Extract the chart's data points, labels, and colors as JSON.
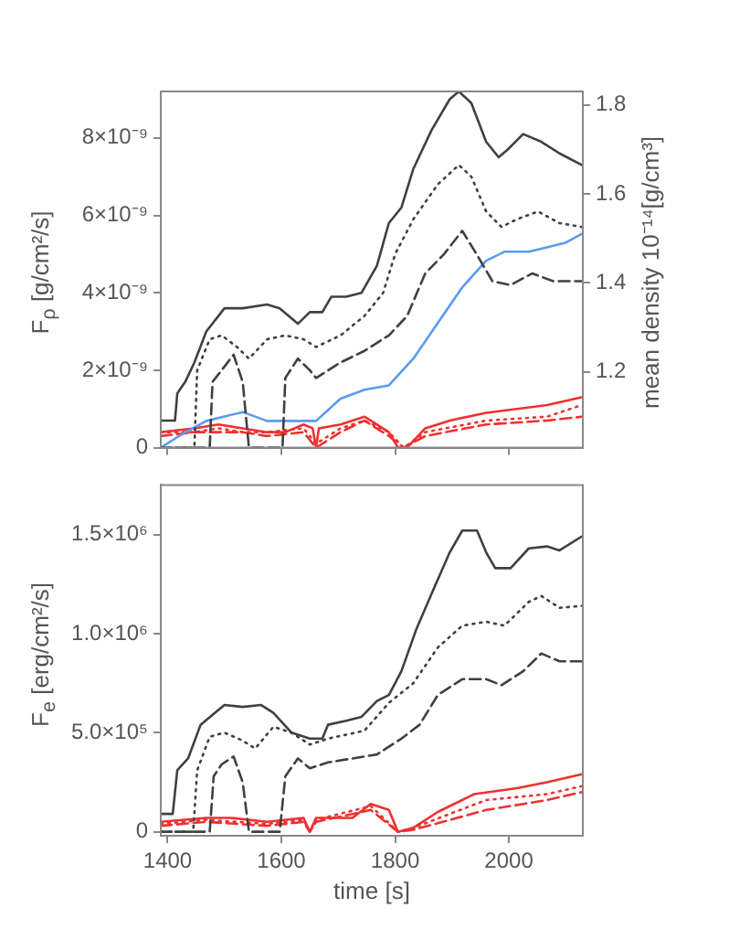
{
  "chart_data": [
    {
      "type": "line",
      "ylabel": "F$_{ρ}$ [g/cm²/s]",
      "y2label": "mean density 10⁻¹⁴[g/cm³]",
      "xlim": [
        1388,
        2130
      ],
      "xticks": [
        1400,
        1600,
        1800,
        2000
      ],
      "ylim": [
        0,
        9.2e-09
      ],
      "yticks": [
        0,
        {
          "value": 2e-09,
          "label": "2×10⁻⁹"
        },
        {
          "value": 4e-09,
          "label": "4×10⁻⁹"
        },
        {
          "value": 6e-09,
          "label": "6×10⁻⁹"
        },
        {
          "value": 8e-09,
          "label": "8×10⁻⁹"
        }
      ],
      "y2lim": [
        1.03,
        1.83
      ],
      "y2ticks": [
        {
          "value": 1.2,
          "label": "1.2"
        },
        {
          "value": 1.4,
          "label": "1.4"
        },
        {
          "value": 1.6,
          "label": "1.6"
        },
        {
          "value": 1.8,
          "label": "1.8"
        }
      ],
      "tick_labels": "y",
      "series": [
        {
          "color": "#404040",
          "line_style": "solid",
          "x": [
            1388,
            1413,
            1417,
            1431,
            1447,
            1468,
            1500,
            1532,
            1575,
            1597,
            1629,
            1650,
            1672,
            1688,
            1714,
            1741,
            1768,
            1789,
            1811,
            1832,
            1864,
            1896,
            1912,
            1934,
            1960,
            1982,
            1998,
            2025,
            2057,
            2089,
            2128
          ],
          "values": [
            7e-10,
            7e-10,
            1.4e-09,
            1.7e-09,
            2.2e-09,
            3e-09,
            3.6e-09,
            3.6e-09,
            3.7e-09,
            3.6e-09,
            3.2e-09,
            3.5e-09,
            3.5e-09,
            3.9e-09,
            3.9e-09,
            4e-09,
            4.7e-09,
            5.8e-09,
            6.2e-09,
            7.2e-09,
            8.2e-09,
            9e-09,
            9.2e-09,
            8.9e-09,
            7.9e-09,
            7.5e-09,
            7.7e-09,
            8.1e-09,
            7.9e-09,
            7.6e-09,
            7.3e-09
          ]
        },
        {
          "color": "#404040",
          "line_style": "dotted",
          "x": [
            1388,
            1447,
            1452,
            1474,
            1495,
            1522,
            1543,
            1575,
            1607,
            1639,
            1661,
            1704,
            1746,
            1779,
            1800,
            1832,
            1875,
            1912,
            1934,
            1960,
            1987,
            2014,
            2051,
            2089,
            2128
          ],
          "values": [
            0,
            0,
            2e-09,
            2.8e-09,
            2.9e-09,
            2.6e-09,
            2.3e-09,
            2.8e-09,
            2.9e-09,
            2.8e-09,
            2.6e-09,
            2.9e-09,
            3.4e-09,
            4e-09,
            5e-09,
            5.9e-09,
            6.8e-09,
            7.3e-09,
            7e-09,
            6.1e-09,
            5.7e-09,
            5.9e-09,
            6.1e-09,
            5.8e-09,
            5.7e-09
          ]
        },
        {
          "color": "#404040",
          "line_style": "dashed",
          "x": [
            1388,
            1474,
            1479,
            1495,
            1516,
            1532,
            1543,
            1602,
            1607,
            1629,
            1650,
            1661,
            1704,
            1746,
            1789,
            1821,
            1853,
            1886,
            1918,
            1939,
            1971,
            2003,
            2041,
            2078,
            2128
          ],
          "values": [
            0,
            0,
            1.7e-09,
            2e-09,
            2.4e-09,
            1.7e-09,
            0,
            0,
            1.8e-09,
            2.3e-09,
            2e-09,
            1.8e-09,
            2.2e-09,
            2.5e-09,
            2.9e-09,
            3.4e-09,
            4.5e-09,
            5e-09,
            5.6e-09,
            5.1e-09,
            4.3e-09,
            4.2e-09,
            4.5e-09,
            4.3e-09,
            4.3e-09
          ]
        },
        {
          "color": "#5b9bf0",
          "line_style": "solid",
          "axis": "y2",
          "x": [
            1388,
            1425,
            1468,
            1532,
            1575,
            1607,
            1639,
            1661,
            1704,
            1746,
            1789,
            1832,
            1875,
            1918,
            1960,
            1992,
            2035,
            2067,
            2099,
            2128
          ],
          "values": [
            1.03,
            1.06,
            1.09,
            1.11,
            1.09,
            1.09,
            1.09,
            1.09,
            1.14,
            1.16,
            1.17,
            1.23,
            1.31,
            1.39,
            1.45,
            1.47,
            1.47,
            1.48,
            1.49,
            1.51
          ]
        },
        {
          "color": "#f03030",
          "line_style": "solid",
          "x": [
            1388,
            1447,
            1489,
            1532,
            1575,
            1607,
            1639,
            1655,
            1661,
            1666,
            1704,
            1746,
            1757,
            1789,
            1805,
            1821,
            1853,
            1896,
            1960,
            2014,
            2067,
            2128
          ],
          "values": [
            4e-10,
            5e-10,
            6e-10,
            5e-10,
            4e-10,
            4e-10,
            6e-10,
            5e-10,
            0,
            5e-10,
            6e-10,
            8e-10,
            7e-10,
            4e-10,
            0,
            0,
            5e-10,
            7e-10,
            9e-10,
            1e-09,
            1.1e-09,
            1.3e-09
          ]
        },
        {
          "color": "#f03030",
          "line_style": "dotted",
          "x": [
            1388,
            1447,
            1489,
            1532,
            1575,
            1639,
            1661,
            1704,
            1746,
            1789,
            1815,
            1853,
            1960,
            2067,
            2128
          ],
          "values": [
            4e-10,
            4e-10,
            5e-10,
            4e-10,
            4e-10,
            5e-10,
            1e-10,
            5e-10,
            7e-10,
            4e-10,
            0,
            4e-10,
            7e-10,
            8e-10,
            1.1e-09
          ]
        },
        {
          "color": "#f03030",
          "line_style": "dashed",
          "x": [
            1388,
            1447,
            1489,
            1532,
            1575,
            1639,
            1661,
            1704,
            1746,
            1789,
            1815,
            1853,
            1960,
            2067,
            2128
          ],
          "values": [
            3e-10,
            4e-10,
            4e-10,
            4e-10,
            3e-10,
            4e-10,
            0,
            4e-10,
            7e-10,
            3e-10,
            0,
            3e-10,
            6e-10,
            7e-10,
            8e-10
          ]
        }
      ]
    },
    {
      "type": "line",
      "ylabel": "F$_{e}$ [erg/cm²/s]",
      "xlabel": "time [s]",
      "xlim": [
        1388,
        2130
      ],
      "xticks": [
        1400,
        1600,
        1800,
        2000
      ],
      "ylim": [
        -20000,
        1750000
      ],
      "yticks": [
        0,
        {
          "value": 500000,
          "label": "5.0×10⁵"
        },
        {
          "value": 1000000,
          "label": "1.0×10⁶"
        },
        {
          "value": 1500000,
          "label": "1.5×10⁶"
        }
      ],
      "series": [
        {
          "color": "#404040",
          "line_style": "solid",
          "x": [
            1388,
            1409,
            1417,
            1436,
            1458,
            1479,
            1500,
            1532,
            1564,
            1586,
            1618,
            1650,
            1672,
            1682,
            1714,
            1741,
            1768,
            1789,
            1811,
            1837,
            1864,
            1896,
            1918,
            1944,
            1960,
            1976,
            2003,
            2035,
            2067,
            2089,
            2128
          ],
          "values": [
            90000,
            90000,
            310000,
            370000,
            540000,
            590000,
            640000,
            630000,
            640000,
            600000,
            500000,
            470000,
            470000,
            540000,
            560000,
            580000,
            660000,
            690000,
            810000,
            1020000,
            1200000,
            1410000,
            1520000,
            1520000,
            1410000,
            1330000,
            1330000,
            1430000,
            1440000,
            1420000,
            1490000
          ]
        },
        {
          "color": "#404040",
          "line_style": "dotted",
          "x": [
            1388,
            1445,
            1452,
            1474,
            1500,
            1532,
            1554,
            1586,
            1618,
            1650,
            1682,
            1746,
            1789,
            1832,
            1875,
            1918,
            1960,
            1992,
            2035,
            2057,
            2089,
            2128
          ],
          "values": [
            0,
            0,
            310000,
            480000,
            500000,
            460000,
            420000,
            530000,
            500000,
            440000,
            470000,
            510000,
            650000,
            750000,
            930000,
            1040000,
            1060000,
            1040000,
            1160000,
            1190000,
            1130000,
            1140000
          ]
        },
        {
          "color": "#404040",
          "line_style": "dashed",
          "x": [
            1388,
            1474,
            1481,
            1495,
            1516,
            1532,
            1543,
            1597,
            1607,
            1629,
            1650,
            1682,
            1725,
            1768,
            1811,
            1843,
            1875,
            1918,
            1960,
            1987,
            2025,
            2057,
            2089,
            2128
          ],
          "values": [
            0,
            0,
            280000,
            340000,
            380000,
            250000,
            0,
            0,
            280000,
            370000,
            320000,
            350000,
            370000,
            390000,
            470000,
            540000,
            690000,
            770000,
            770000,
            740000,
            810000,
            900000,
            860000,
            860000
          ]
        },
        {
          "color": "#f03030",
          "line_style": "solid",
          "x": [
            1388,
            1468,
            1511,
            1575,
            1639,
            1650,
            1661,
            1725,
            1757,
            1789,
            1805,
            1832,
            1875,
            1939,
            2014,
            2067,
            2128
          ],
          "values": [
            50000,
            70000,
            70000,
            50000,
            70000,
            0,
            70000,
            70000,
            140000,
            110000,
            0,
            20000,
            100000,
            190000,
            220000,
            250000,
            290000
          ]
        },
        {
          "color": "#f03030",
          "line_style": "dotted",
          "x": [
            1388,
            1468,
            1575,
            1639,
            1650,
            1661,
            1757,
            1805,
            1832,
            1960,
            2067,
            2128
          ],
          "values": [
            40000,
            60000,
            40000,
            60000,
            0,
            60000,
            130000,
            0,
            20000,
            160000,
            190000,
            230000
          ]
        },
        {
          "color": "#f03030",
          "line_style": "dashed",
          "x": [
            1388,
            1468,
            1575,
            1639,
            1650,
            1661,
            1757,
            1805,
            1832,
            1960,
            2067,
            2128
          ],
          "values": [
            30000,
            50000,
            30000,
            50000,
            0,
            50000,
            110000,
            0,
            10000,
            110000,
            160000,
            200000
          ]
        }
      ]
    }
  ]
}
